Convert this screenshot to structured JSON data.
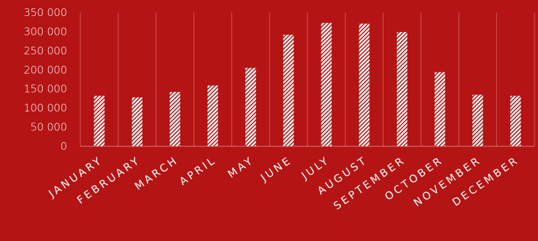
{
  "chart_data": {
    "type": "bar",
    "categories": [
      "JANUARY",
      "FEBRUARY",
      "MARCH",
      "APRIL",
      "MAY",
      "JUNE",
      "JULY",
      "AUGUST",
      "SEPTEMBER",
      "OCTOBER",
      "NOVEMBER",
      "DECEMBER"
    ],
    "values": [
      132000,
      128000,
      142000,
      159000,
      205000,
      292000,
      323000,
      321000,
      299000,
      194000,
      135000,
      132000
    ],
    "ylim": [
      0,
      350000
    ],
    "yticks": [
      0,
      50000,
      100000,
      150000,
      200000,
      250000,
      300000,
      350000
    ],
    "ytick_labels": [
      "0",
      "50 000",
      "100 000",
      "150 000",
      "200 000",
      "250 000",
      "300 000",
      "350 000"
    ],
    "title": "",
    "xlabel": "",
    "ylabel": "",
    "grid": "vertical",
    "legend": "none",
    "colors": {
      "background": "#b41414",
      "bar_fill": "#ffffff",
      "bar_hatch": "#b41414",
      "text": "#ffffff",
      "grid": "#cf5a5a"
    }
  }
}
